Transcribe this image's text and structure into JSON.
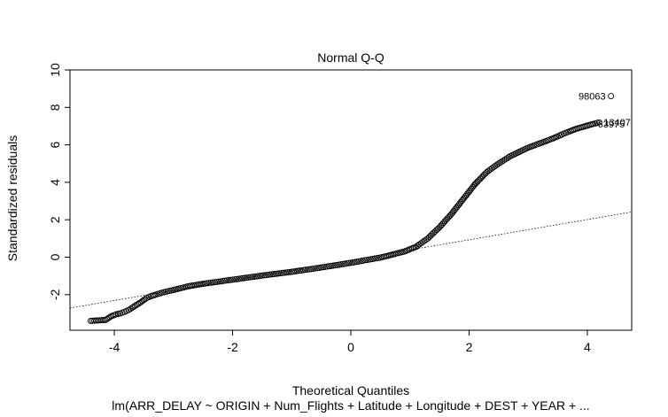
{
  "chart_data": {
    "type": "scatter",
    "title": "Normal Q-Q",
    "xlabel": "Theoretical Quantiles",
    "ylabel": "Standardized residuals",
    "subtitle": "lm(ARR_DELAY ~ ORIGIN + Num_Flights + Latitude + Longitude + DEST + YEAR +  ...",
    "xlim": [
      -4.75,
      4.75
    ],
    "ylim": [
      -3.9,
      10
    ],
    "x_ticks": [
      -4,
      -2,
      0,
      2,
      4
    ],
    "x_tick_labels": [
      "-4",
      "-2",
      "0",
      "2",
      "4"
    ],
    "y_ticks": [
      -2,
      0,
      2,
      4,
      6,
      8,
      10
    ],
    "y_tick_labels": [
      "-2",
      "0",
      "2",
      "4",
      "6",
      "8",
      "10"
    ],
    "grid": false,
    "reference_line": {
      "intercept": -0.15,
      "slope": 0.54
    },
    "points": [
      {
        "x": -4.4,
        "y": -3.4
      },
      {
        "x": -4.15,
        "y": -3.35
      },
      {
        "x": -4.05,
        "y": -3.15
      },
      {
        "x": -3.97,
        "y": -3.05
      },
      {
        "x": -3.9,
        "y": -3.0
      },
      {
        "x": -3.83,
        "y": -2.92
      },
      {
        "x": -3.76,
        "y": -2.82
      },
      {
        "x": -3.7,
        "y": -2.7
      },
      {
        "x": -3.65,
        "y": -2.6
      },
      {
        "x": -3.6,
        "y": -2.5
      },
      {
        "x": -3.55,
        "y": -2.4
      },
      {
        "x": -3.5,
        "y": -2.28
      },
      {
        "x": -3.45,
        "y": -2.18
      },
      {
        "x": -3.38,
        "y": -2.08
      },
      {
        "x": -3.3,
        "y": -2.0
      },
      {
        "x": -3.2,
        "y": -1.9
      },
      {
        "x": -3.0,
        "y": -1.75
      },
      {
        "x": -2.75,
        "y": -1.55
      },
      {
        "x": -2.5,
        "y": -1.42
      },
      {
        "x": -2.0,
        "y": -1.2
      },
      {
        "x": -1.5,
        "y": -0.98
      },
      {
        "x": -1.0,
        "y": -0.78
      },
      {
        "x": -0.5,
        "y": -0.55
      },
      {
        "x": 0.0,
        "y": -0.3
      },
      {
        "x": 0.5,
        "y": -0.02
      },
      {
        "x": 0.9,
        "y": 0.3
      },
      {
        "x": 1.1,
        "y": 0.55
      },
      {
        "x": 1.3,
        "y": 1.0
      },
      {
        "x": 1.5,
        "y": 1.6
      },
      {
        "x": 1.7,
        "y": 2.3
      },
      {
        "x": 1.9,
        "y": 3.1
      },
      {
        "x": 2.1,
        "y": 3.9
      },
      {
        "x": 2.3,
        "y": 4.55
      },
      {
        "x": 2.5,
        "y": 5.0
      },
      {
        "x": 2.7,
        "y": 5.4
      },
      {
        "x": 3.0,
        "y": 5.85
      },
      {
        "x": 3.3,
        "y": 6.2
      },
      {
        "x": 3.5,
        "y": 6.45
      },
      {
        "x": 3.6,
        "y": 6.6
      },
      {
        "x": 3.7,
        "y": 6.72
      },
      {
        "x": 3.78,
        "y": 6.82
      },
      {
        "x": 3.86,
        "y": 6.9
      },
      {
        "x": 3.94,
        "y": 6.97
      },
      {
        "x": 4.02,
        "y": 7.05
      },
      {
        "x": 4.1,
        "y": 7.12
      },
      {
        "x": 4.2,
        "y": 7.2
      },
      {
        "x": 4.4,
        "y": 8.6
      }
    ],
    "point_labels": [
      {
        "text": "98063",
        "x": 4.4,
        "y": 8.6,
        "anchor": "end"
      },
      {
        "text": "13407",
        "x": 4.2,
        "y": 7.2,
        "anchor": "start"
      },
      {
        "text": "63975",
        "x": 4.1,
        "y": 7.12,
        "anchor": "start"
      }
    ]
  }
}
